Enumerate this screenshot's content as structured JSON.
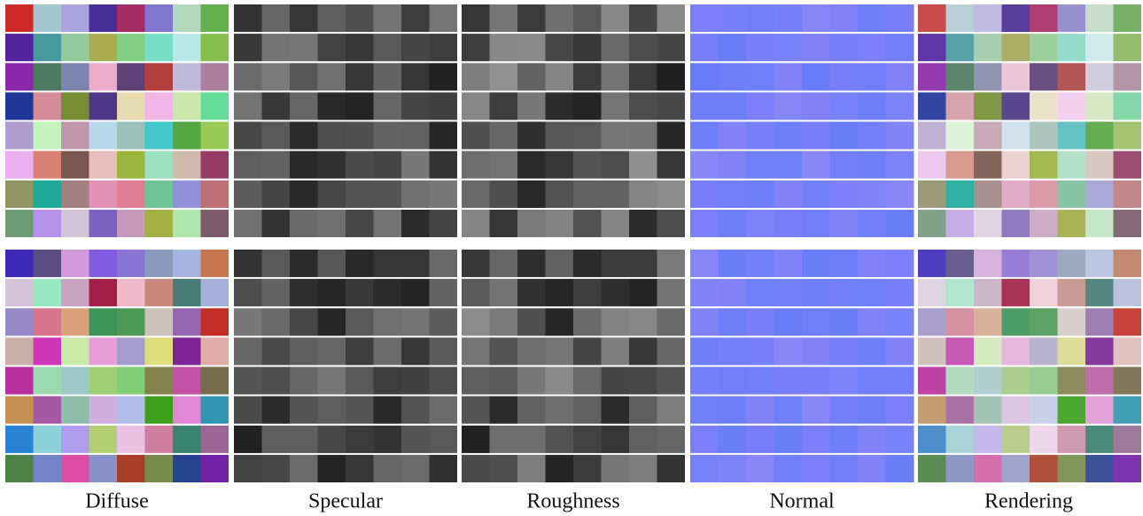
{
  "figure": {
    "columns": [
      "Diffuse",
      "Specular",
      "Roughness",
      "Normal",
      "Rendering"
    ]
  }
}
